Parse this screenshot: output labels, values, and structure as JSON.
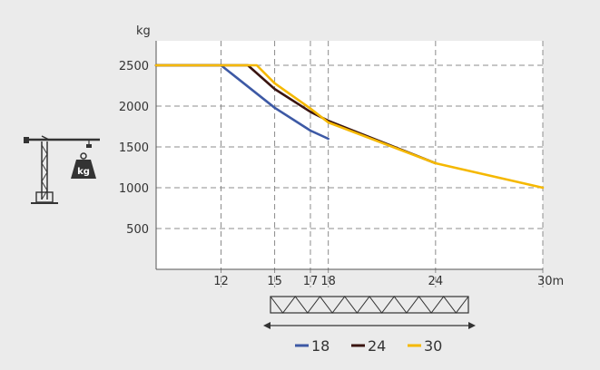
{
  "chart_data": {
    "type": "line",
    "ylabel": "kg",
    "x_unit": "m",
    "xlim": [
      8,
      30
    ],
    "ylim": [
      0,
      2800
    ],
    "x_ticks": [
      12,
      15,
      17,
      18,
      24,
      30
    ],
    "x_tick_labels": [
      "12",
      "15",
      "17",
      "18",
      "24",
      "30m"
    ],
    "y_ticks": [
      500,
      1000,
      1500,
      2000,
      2500
    ],
    "y_tick_labels": [
      "500",
      "1000",
      "1500",
      "2000",
      "2500"
    ],
    "grid": true,
    "legend_position": "bottom",
    "series": [
      {
        "name": "18",
        "color": "#3d59a5",
        "x": [
          8,
          12,
          15,
          17,
          18
        ],
        "y": [
          2500,
          2500,
          1980,
          1700,
          1600
        ]
      },
      {
        "name": "24",
        "color": "#3a1410",
        "x": [
          8,
          12,
          13.5,
          15,
          17,
          18,
          24
        ],
        "y": [
          2500,
          2500,
          2500,
          2210,
          1930,
          1820,
          1300
        ]
      },
      {
        "name": "30",
        "color": "#f5b800",
        "x": [
          8,
          12,
          14,
          15,
          17,
          18,
          24,
          30
        ],
        "y": [
          2500,
          2500,
          2500,
          2280,
          1970,
          1800,
          1300,
          1000
        ]
      }
    ]
  },
  "crane_icon": {
    "name": "tower-crane-icon",
    "weight_label": "kg"
  },
  "jib_icon": {
    "name": "jib-lattice-icon"
  },
  "colors": {
    "background": "#ebebeb",
    "plot_background": "#ffffff",
    "grid": "#8c8c8c",
    "text": "#333333"
  }
}
